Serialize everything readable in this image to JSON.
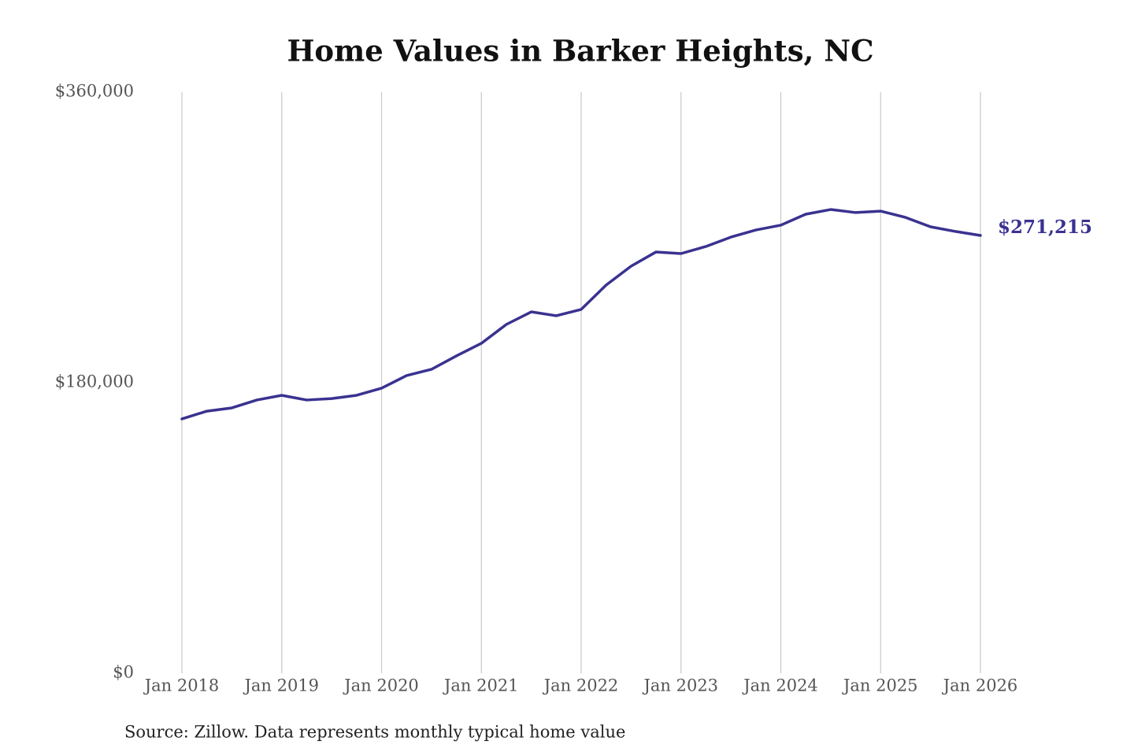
{
  "chart_data": {
    "type": "line",
    "title": "Home Values in Barker Heights, NC",
    "source": "Source: Zillow. Data represents monthly typical home value",
    "x": [
      "Jan 2018",
      "Apr 2018",
      "Jul 2018",
      "Oct 2018",
      "Jan 2019",
      "Apr 2019",
      "Jul 2019",
      "Oct 2019",
      "Jan 2020",
      "Apr 2020",
      "Jul 2020",
      "Oct 2020",
      "Jan 2021",
      "Apr 2021",
      "Jul 2021",
      "Oct 2021",
      "Jan 2022",
      "Apr 2022",
      "Jul 2022",
      "Oct 2022",
      "Jan 2023",
      "Apr 2023",
      "Jul 2023",
      "Oct 2023",
      "Jan 2024",
      "Apr 2024",
      "Jul 2024",
      "Oct 2024",
      "Jan 2025",
      "Apr 2025",
      "Jul 2025",
      "Oct 2025",
      "Jan 2026"
    ],
    "series": [
      {
        "name": "Home value",
        "color": "#3a3290",
        "values": [
          157600,
          162400,
          164400,
          169300,
          172200,
          169300,
          170200,
          172200,
          176600,
          184400,
          188300,
          196600,
          204400,
          216100,
          223900,
          221500,
          225400,
          240500,
          252200,
          261000,
          260000,
          264400,
          270200,
          274600,
          277600,
          284400,
          287300,
          285400,
          286300,
          282400,
          276600,
          273700,
          271215
        ],
        "value_labels": [
          null,
          null,
          null,
          null,
          null,
          null,
          null,
          null,
          null,
          null,
          null,
          null,
          null,
          null,
          null,
          null,
          null,
          null,
          null,
          null,
          null,
          null,
          null,
          null,
          null,
          null,
          null,
          null,
          null,
          null,
          null,
          null,
          "$271,215"
        ]
      }
    ],
    "xlim": [
      "Jan 2018",
      "Jan 2026"
    ],
    "xticks": [
      "Jan 2018",
      "Jan 2019",
      "Jan 2020",
      "Jan 2021",
      "Jan 2022",
      "Jan 2023",
      "Jan 2024",
      "Jan 2025",
      "Jan 2026"
    ],
    "ylim": [
      0,
      360000
    ],
    "yticks": [
      {
        "value": 0,
        "label": "$0"
      },
      {
        "value": 180000,
        "label": "$180,000"
      },
      {
        "value": 360000,
        "label": "$360,000"
      }
    ],
    "grid": true
  }
}
